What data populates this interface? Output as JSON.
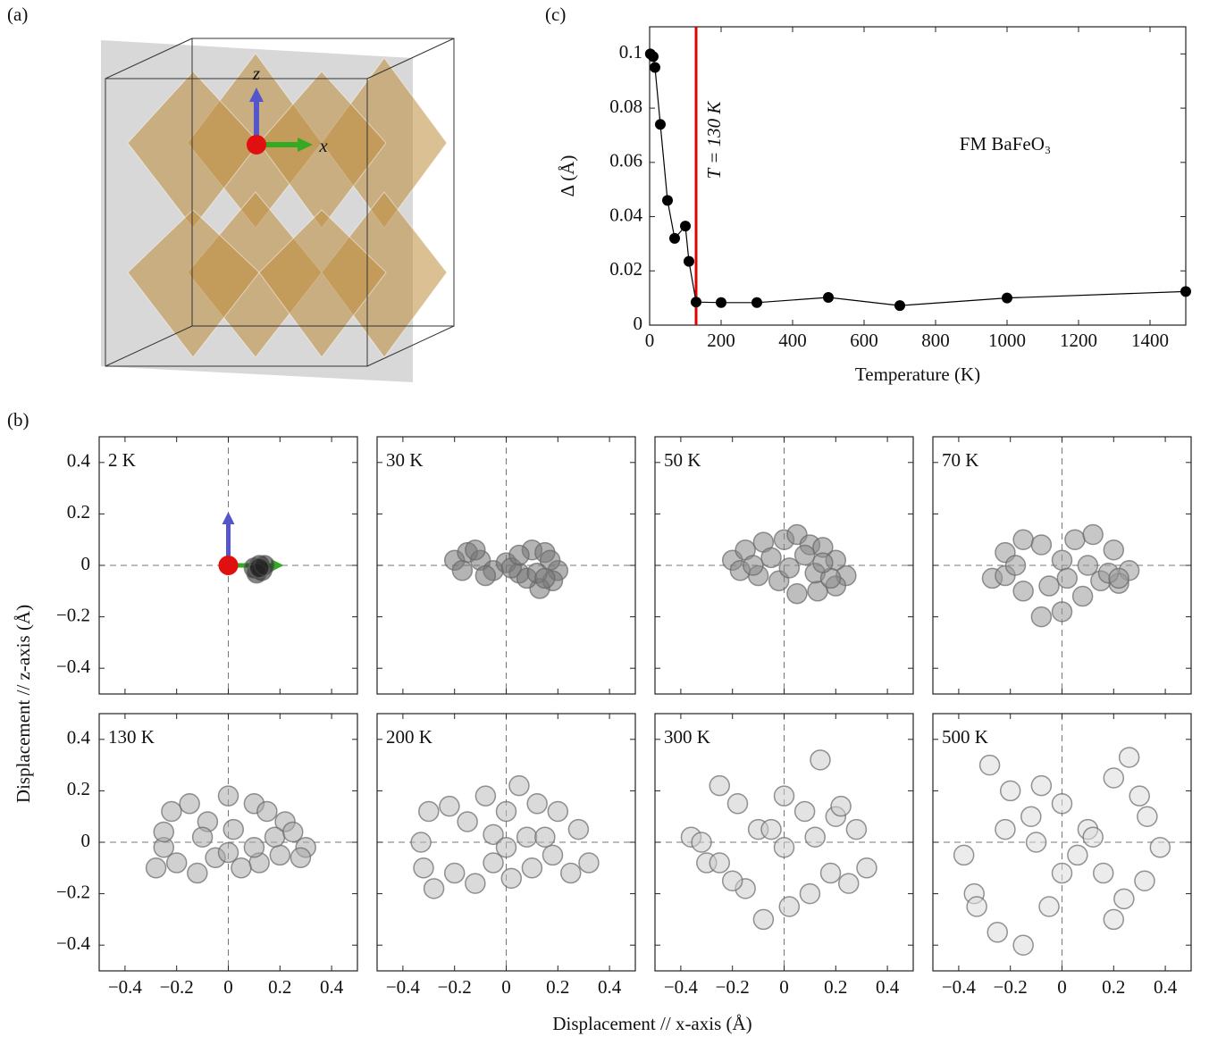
{
  "panel_labels": [
    "(a)",
    "(b)",
    "(c)"
  ],
  "panel_a": {
    "axis_labels": [
      "z",
      "x"
    ]
  },
  "panel_b_axes": {
    "xlabel": "Displacement // x-axis (Å)",
    "ylabel": "Displacement // z-axis (Å)",
    "xlim": [
      -0.5,
      0.5
    ],
    "ylim": [
      -0.5,
      0.5
    ],
    "xticks": [
      {
        "value": -0.4,
        "label": "−0.4"
      },
      {
        "value": -0.2,
        "label": "−0.2"
      },
      0,
      0.2,
      0.4
    ],
    "yticks": [
      {
        "value": -0.4,
        "label": "−0.4"
      },
      {
        "value": -0.2,
        "label": "−0.2"
      },
      0,
      0.2,
      0.4
    ]
  },
  "chart_data": [
    {
      "type": "line",
      "xlabel": "Temperature (K)",
      "ylabel": "Δ (Å)",
      "annotation": "FM BaFeO₃",
      "x": [
        2,
        10,
        15,
        30,
        50,
        70,
        100,
        110,
        130,
        200,
        300,
        500,
        700,
        1000,
        1500
      ],
      "values": [
        0.1,
        0.099,
        0.095,
        0.074,
        0.046,
        0.032,
        0.0365,
        0.0235,
        0.0085,
        0.0083,
        0.0083,
        0.0102,
        0.0072,
        0.01,
        0.0124
      ],
      "color": "#000000",
      "xlim": [
        0,
        1500
      ],
      "ylim": [
        0,
        0.11
      ],
      "xticks": [
        0,
        200,
        400,
        600,
        800,
        1000,
        1200,
        1400
      ],
      "yticks": [
        0,
        0.02,
        0.04,
        0.06,
        0.08,
        0.1
      ],
      "vline": {
        "x": 130,
        "label": "T = 130 K",
        "color": "#e00000"
      }
    },
    {
      "type": "scatter",
      "title": "2 K",
      "color": "#222222",
      "x": [
        0.1,
        0.12,
        0.13,
        0.11,
        0.14,
        0.12
      ],
      "y": [
        -0.01,
        0.0,
        -0.02,
        -0.03,
        0.0,
        -0.01
      ]
    },
    {
      "type": "scatter",
      "title": "30 K",
      "color": "#777777",
      "x": [
        -0.2,
        -0.15,
        -0.1,
        -0.05,
        0,
        0.05,
        0.1,
        0.15,
        0.2,
        0.18,
        0.13,
        0.08,
        0.02,
        -0.08,
        -0.17,
        0.12,
        0.17,
        -0.12,
        0.05,
        0.15
      ],
      "y": [
        0.02,
        0.05,
        0.02,
        -0.02,
        0.01,
        -0.03,
        0.06,
        0.05,
        -0.02,
        -0.06,
        -0.09,
        -0.05,
        -0.01,
        -0.04,
        -0.02,
        -0.03,
        0.02,
        0.06,
        0.04,
        -0.05
      ]
    },
    {
      "type": "scatter",
      "title": "50 K",
      "color": "#888888",
      "x": [
        -0.2,
        -0.15,
        -0.08,
        0,
        0.05,
        0.1,
        0.15,
        0.2,
        0.24,
        0.2,
        0.13,
        0.05,
        -0.02,
        -0.1,
        -0.17,
        0.12,
        0.18,
        -0.05,
        0.02,
        0.08,
        0.15,
        -0.12
      ],
      "y": [
        0.02,
        0.06,
        0.09,
        0.1,
        0.12,
        0.08,
        0.07,
        0.02,
        -0.04,
        -0.08,
        -0.1,
        -0.11,
        -0.06,
        -0.04,
        -0.02,
        -0.03,
        -0.05,
        0.03,
        -0.01,
        0.04,
        0.01,
        0.0
      ]
    },
    {
      "type": "scatter",
      "title": "70 K",
      "color": "#999999",
      "x": [
        -0.27,
        -0.22,
        -0.15,
        -0.08,
        0,
        0.05,
        0.12,
        0.2,
        0.26,
        0.22,
        0.15,
        0.08,
        0,
        -0.08,
        -0.15,
        -0.22,
        0.18,
        0.22,
        -0.05,
        0.1,
        -0.18,
        0.02
      ],
      "y": [
        -0.05,
        0.05,
        0.1,
        0.08,
        0.02,
        0.1,
        0.12,
        0.06,
        -0.02,
        -0.07,
        -0.06,
        -0.12,
        -0.18,
        -0.2,
        -0.1,
        -0.04,
        -0.03,
        -0.05,
        -0.08,
        0.0,
        0.0,
        -0.05
      ]
    },
    {
      "type": "scatter",
      "title": "130 K",
      "color": "#aaaaaa",
      "highlight_color": "#e00000",
      "x": [
        -0.28,
        -0.25,
        -0.22,
        -0.15,
        -0.08,
        0,
        0.02,
        0.1,
        0.15,
        0.22,
        0.3,
        0.28,
        0.2,
        0.12,
        0.05,
        -0.05,
        -0.12,
        -0.2,
        -0.25,
        0.1,
        0.18,
        -0.1,
        0.0,
        0.25
      ],
      "y": [
        -0.1,
        -0.02,
        0.12,
        0.15,
        0.08,
        0.18,
        0.05,
        0.15,
        0.12,
        0.08,
        -0.02,
        -0.06,
        -0.05,
        -0.08,
        -0.1,
        -0.06,
        -0.12,
        -0.08,
        0.04,
        -0.02,
        0.02,
        0.02,
        -0.04,
        0.04
      ]
    },
    {
      "type": "scatter",
      "title": "200 K",
      "color": "#bbbbbb",
      "x": [
        -0.33,
        -0.3,
        -0.22,
        -0.15,
        -0.08,
        0,
        0.05,
        0.12,
        0.2,
        0.28,
        0.32,
        0.25,
        0.18,
        0.1,
        0.02,
        -0.05,
        -0.12,
        -0.2,
        -0.28,
        -0.32,
        0.08,
        -0.05,
        0.15,
        0.0
      ],
      "y": [
        0.0,
        0.12,
        0.14,
        0.08,
        0.18,
        0.12,
        0.22,
        0.15,
        0.12,
        0.05,
        -0.08,
        -0.12,
        -0.05,
        -0.1,
        -0.14,
        -0.08,
        -0.16,
        -0.12,
        -0.18,
        -0.1,
        0.02,
        0.03,
        0.02,
        -0.02
      ]
    },
    {
      "type": "scatter",
      "title": "300 K",
      "color": "#cccccc",
      "x": [
        -0.36,
        -0.3,
        -0.25,
        -0.18,
        -0.1,
        0,
        0.08,
        0.14,
        0.2,
        0.28,
        0.32,
        0.25,
        0.18,
        0.1,
        0.02,
        -0.08,
        -0.15,
        -0.25,
        -0.32,
        0.0,
        0.12,
        -0.05,
        0.22,
        -0.2
      ],
      "y": [
        0.02,
        -0.08,
        0.22,
        0.15,
        0.05,
        0.18,
        0.12,
        0.32,
        0.1,
        0.05,
        -0.1,
        -0.16,
        -0.12,
        -0.2,
        -0.25,
        -0.3,
        -0.18,
        -0.08,
        0.0,
        -0.02,
        0.02,
        0.05,
        0.14,
        -0.15
      ]
    },
    {
      "type": "scatter",
      "title": "500 K",
      "color": "#dddddd",
      "x": [
        -0.38,
        -0.34,
        -0.28,
        -0.2,
        -0.12,
        0,
        0.1,
        0.2,
        0.26,
        0.33,
        0.38,
        0.32,
        0.24,
        0.16,
        0.06,
        -0.05,
        -0.15,
        -0.25,
        -0.33,
        -0.1,
        0.12,
        0.0,
        -0.22,
        0.2,
        -0.08,
        0.3
      ],
      "y": [
        -0.05,
        -0.2,
        0.3,
        0.2,
        0.1,
        0.15,
        0.05,
        0.25,
        0.33,
        0.1,
        -0.02,
        -0.15,
        -0.22,
        -0.12,
        -0.05,
        -0.25,
        -0.4,
        -0.35,
        -0.25,
        0.0,
        0.02,
        -0.12,
        0.05,
        -0.3,
        0.22,
        0.18
      ]
    }
  ]
}
